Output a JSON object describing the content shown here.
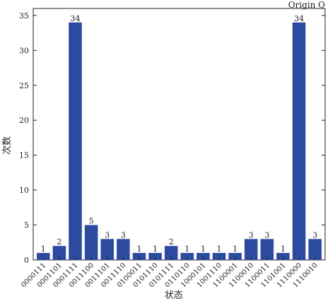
{
  "brand": "Origin Q",
  "chart_data": {
    "type": "bar",
    "title": "",
    "xlabel": "状态",
    "ylabel": "次数",
    "ylim": [
      0,
      36
    ],
    "yticks": [
      0,
      5,
      10,
      15,
      20,
      25,
      30,
      35
    ],
    "categories": [
      "0000111",
      "0001101",
      "0001111",
      "0011100",
      "0011101",
      "0011110",
      "0100011",
      "0101110",
      "0101111",
      "0110110",
      "1000101",
      "1001110",
      "1100001",
      "1100010",
      "1100011",
      "1101001",
      "1110000",
      "1110010"
    ],
    "values": [
      1,
      2,
      34,
      5,
      3,
      3,
      1,
      1,
      2,
      1,
      1,
      1,
      1,
      3,
      3,
      1,
      34,
      3
    ],
    "bar_color": "#2e4aa0",
    "grid": false,
    "data_labels": true
  }
}
